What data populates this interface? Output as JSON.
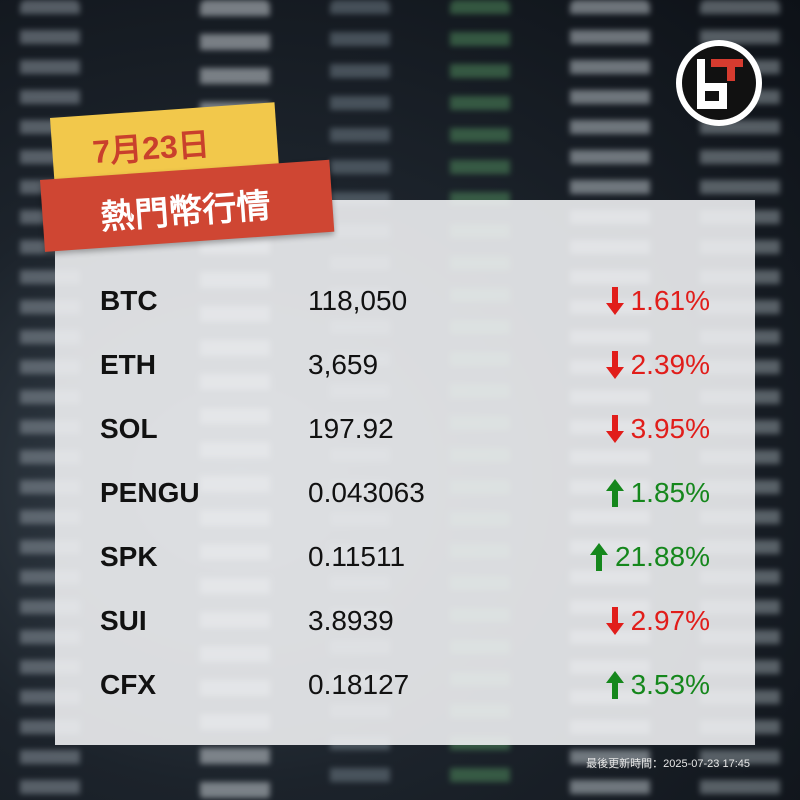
{
  "header": {
    "date": "7月23日",
    "title": "熱門幣行情"
  },
  "table": {
    "rows": [
      {
        "symbol": "BTC",
        "price": "118,050",
        "change": "1.61%",
        "direction": "down"
      },
      {
        "symbol": "ETH",
        "price": "3,659",
        "change": "2.39%",
        "direction": "down"
      },
      {
        "symbol": "SOL",
        "price": "197.92",
        "change": "3.95%",
        "direction": "down"
      },
      {
        "symbol": "PENGU",
        "price": "0.043063",
        "change": "1.85%",
        "direction": "up"
      },
      {
        "symbol": "SPK",
        "price": "0.11511",
        "change": "21.88%",
        "direction": "up"
      },
      {
        "symbol": "SUI",
        "price": "3.8939",
        "change": "2.97%",
        "direction": "down"
      },
      {
        "symbol": "CFX",
        "price": "0.18127",
        "change": "3.53%",
        "direction": "up"
      }
    ]
  },
  "footer": {
    "updated": "最後更新時間：2025-07-23 17:45"
  }
}
